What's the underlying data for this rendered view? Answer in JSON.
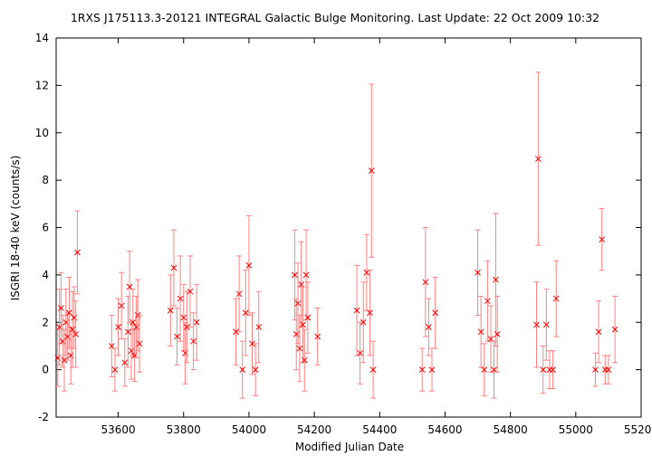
{
  "chart_data": {
    "type": "scatter",
    "title": "1RXS J175113.3-20121   INTEGRAL Galactic Bulge Monitoring.  Last Update: 22 Oct 2009 10:32",
    "xlabel": "Modified Julian Date",
    "ylabel": "ISGRI 18-40 keV (counts/s)",
    "xlim": [
      53410,
      55200
    ],
    "ylim": [
      -2,
      14
    ],
    "xticks": [
      53600,
      53800,
      54000,
      54200,
      54400,
      54600,
      54800,
      55000,
      55200
    ],
    "yticks": [
      -2,
      0,
      2,
      4,
      6,
      8,
      10,
      12,
      14
    ],
    "grid": false,
    "legend": "none",
    "color": "#ff0000",
    "errorbar_color": "#ff8080",
    "series": [
      {
        "marker": "x",
        "x": [
          53415,
          53420,
          53425,
          53430,
          53435,
          53440,
          53445,
          53450,
          53455,
          53460,
          53465,
          53470,
          53475,
          53580,
          53590,
          53600,
          53610,
          53620,
          53630,
          53635,
          53640,
          53645,
          53650,
          53655,
          53660,
          53665,
          53760,
          53770,
          53780,
          53790,
          53800,
          53805,
          53810,
          53820,
          53830,
          53840,
          53960,
          53970,
          53980,
          53990,
          54000,
          54010,
          54020,
          54030,
          54140,
          54145,
          54150,
          54155,
          54160,
          54165,
          54170,
          54175,
          54180,
          54210,
          54330,
          54340,
          54350,
          54360,
          54370,
          54375,
          54380,
          54530,
          54540,
          54550,
          54560,
          54570,
          54700,
          54710,
          54720,
          54730,
          54740,
          54750,
          54755,
          54760,
          54880,
          54885,
          54900,
          54910,
          54920,
          54930,
          54940,
          55060,
          55070,
          55080,
          55090,
          55100,
          55120
        ],
        "y": [
          0.5,
          1.8,
          2.6,
          1.2,
          0.4,
          2.0,
          1.4,
          2.4,
          0.6,
          1.7,
          2.2,
          1.5,
          4.95,
          1.0,
          0.0,
          1.8,
          2.7,
          0.3,
          1.6,
          3.5,
          0.8,
          2.0,
          0.6,
          1.8,
          2.3,
          1.1,
          2.5,
          4.3,
          1.4,
          3.0,
          2.2,
          0.7,
          1.8,
          3.3,
          1.2,
          2.0,
          1.6,
          3.2,
          0.0,
          2.4,
          4.4,
          1.1,
          0.0,
          1.8,
          4.0,
          1.5,
          2.8,
          0.9,
          3.6,
          1.9,
          0.4,
          4.0,
          2.2,
          1.4,
          2.5,
          0.7,
          2.0,
          4.1,
          2.4,
          8.4,
          0.0,
          0.0,
          3.7,
          1.8,
          0.0,
          2.4,
          4.1,
          1.6,
          0.0,
          2.9,
          1.3,
          0.0,
          3.8,
          1.5,
          1.9,
          8.9,
          0.0,
          1.9,
          0.0,
          0.0,
          3.0,
          0.0,
          1.6,
          5.5,
          0.0,
          0.0,
          1.7
        ],
        "yerr": [
          1.2,
          1.6,
          1.5,
          1.1,
          1.3,
          1.4,
          1.0,
          1.5,
          1.2,
          1.6,
          1.3,
          1.4,
          1.75,
          1.3,
          0.9,
          1.2,
          1.4,
          1.0,
          1.5,
          1.5,
          1.2,
          1.4,
          1.1,
          1.3,
          1.5,
          1.2,
          1.5,
          1.6,
          1.2,
          1.8,
          1.4,
          1.3,
          1.5,
          1.5,
          1.2,
          1.6,
          1.4,
          1.6,
          1.2,
          1.8,
          2.1,
          1.3,
          1.1,
          1.5,
          1.9,
          1.5,
          1.7,
          1.4,
          1.8,
          1.6,
          1.3,
          1.9,
          1.5,
          1.2,
          1.9,
          1.3,
          1.7,
          1.6,
          1.8,
          3.65,
          1.2,
          0.9,
          2.3,
          1.2,
          0.9,
          1.5,
          1.8,
          1.5,
          1.1,
          1.7,
          1.4,
          1.2,
          2.8,
          1.6,
          1.8,
          3.65,
          1.0,
          1.5,
          0.8,
          0.8,
          1.6,
          0.7,
          1.3,
          1.3,
          0.6,
          0.6,
          1.4
        ]
      }
    ]
  }
}
